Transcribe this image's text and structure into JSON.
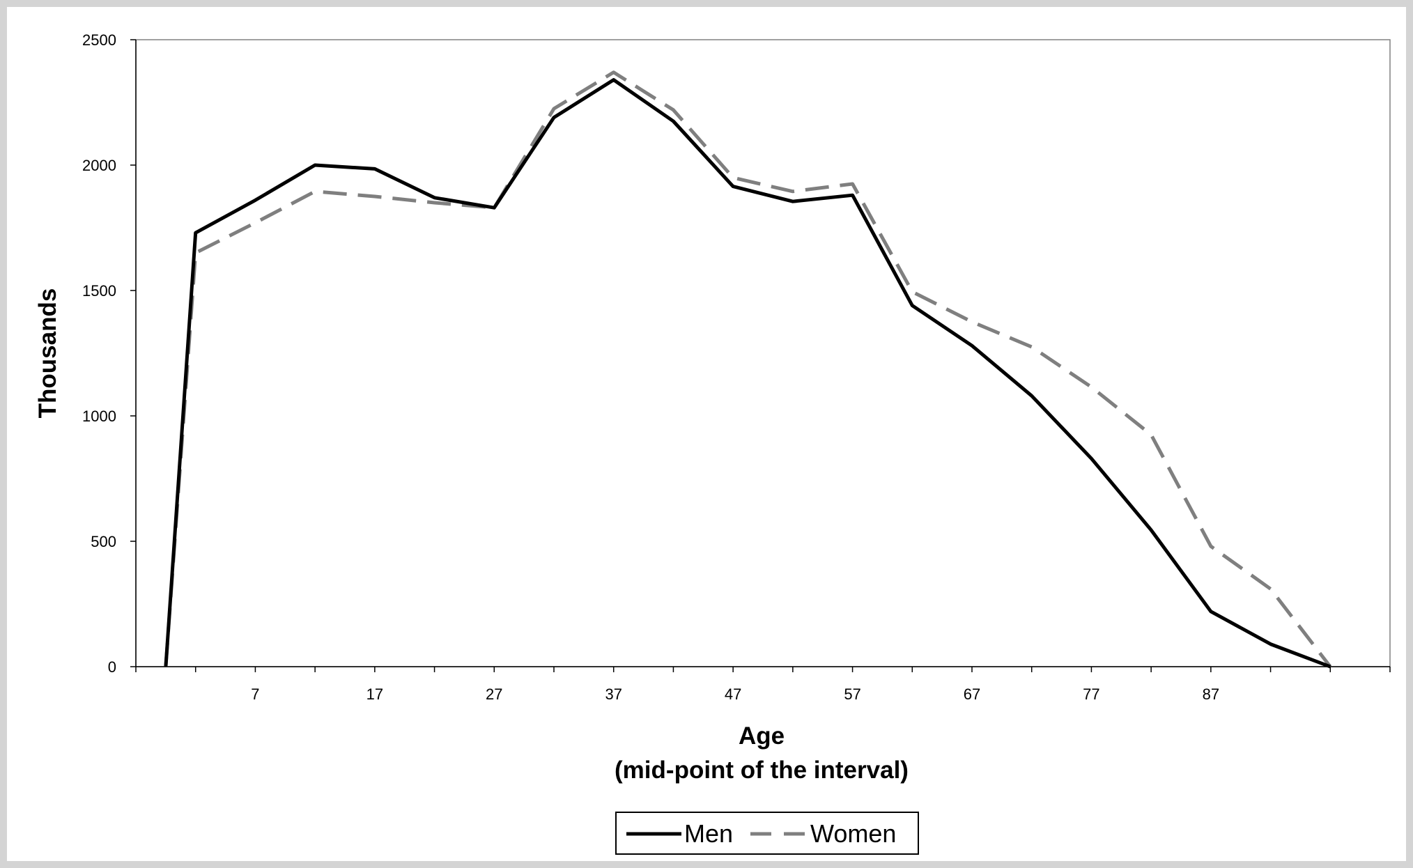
{
  "chart_data": {
    "type": "line",
    "title": "",
    "xlabel_lines": [
      "Age",
      "(mid-point of the interval)"
    ],
    "ylabel": "Thousands",
    "ylim": [
      0,
      2500
    ],
    "yticks": [
      0,
      500,
      1000,
      1500,
      2000,
      2500
    ],
    "xlim": [
      -3,
      102
    ],
    "xtick_labels": [
      7,
      17,
      27,
      37,
      47,
      57,
      67,
      77,
      87
    ],
    "x": [
      -0.5,
      2,
      7,
      12,
      17,
      22,
      27,
      32,
      37,
      42,
      47,
      52,
      57,
      62,
      67,
      72,
      77,
      82,
      87,
      92,
      97
    ],
    "series": [
      {
        "name": "Men",
        "color": "#000000",
        "dash": "solid",
        "values": [
          0,
          1730,
          1860,
          2000,
          1985,
          1870,
          1830,
          2190,
          2340,
          2175,
          1915,
          1855,
          1880,
          1440,
          1280,
          1080,
          830,
          545,
          220,
          90,
          0
        ]
      },
      {
        "name": "Women",
        "color": "#7f7f7f",
        "dash": "dashed",
        "values": [
          0,
          1650,
          1770,
          1895,
          1875,
          1850,
          1830,
          2225,
          2370,
          2220,
          1950,
          1895,
          1925,
          1495,
          1375,
          1275,
          1115,
          925,
          480,
          310,
          0
        ]
      }
    ],
    "grid": false,
    "legend": "bottom-center"
  }
}
